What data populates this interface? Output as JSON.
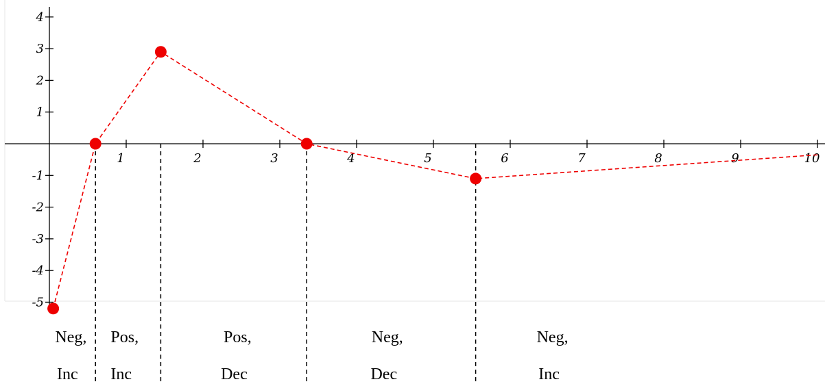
{
  "chart_data": {
    "type": "line",
    "title": "",
    "xlabel": "",
    "ylabel": "",
    "xlim": [
      0,
      10
    ],
    "ylim": [
      -5,
      4
    ],
    "grid": false,
    "legend": "none",
    "x_ticks": [
      1,
      2,
      3,
      4,
      5,
      6,
      7,
      8,
      9,
      10
    ],
    "x_tick_labels": [
      "1",
      "2",
      "3",
      "4",
      "5",
      "6",
      "7",
      "8",
      "9",
      "10"
    ],
    "y_ticks": [
      4,
      3,
      2,
      1,
      -1,
      -2,
      -3,
      -4,
      -5
    ],
    "y_tick_labels": [
      "4",
      "3",
      "2",
      "1",
      "-1",
      "-2",
      "-3",
      "-4",
      "-5"
    ],
    "series": [
      {
        "color": "#ee0000",
        "style": "dashed",
        "x": [
          0.05,
          0.6,
          1.45,
          3.35,
          5.55,
          10.0
        ],
        "y": [
          -5.2,
          0,
          2.9,
          0,
          -1.1,
          -0.35
        ],
        "markers": [
          true,
          true,
          true,
          true,
          true,
          false
        ]
      }
    ],
    "dividers_x": [
      0.6,
      1.45,
      3.35,
      5.55
    ],
    "regions": [
      {
        "line1": "Neg,",
        "line2": "Inc",
        "x": 0.28
      },
      {
        "line1": "Pos,",
        "line2": "Inc",
        "x": 0.98
      },
      {
        "line1": "Pos,",
        "line2": "Dec",
        "x": 2.45
      },
      {
        "line1": "Neg,",
        "line2": "Dec",
        "x": 4.4
      },
      {
        "line1": "Neg,",
        "line2": "Inc",
        "x": 6.55
      }
    ]
  }
}
